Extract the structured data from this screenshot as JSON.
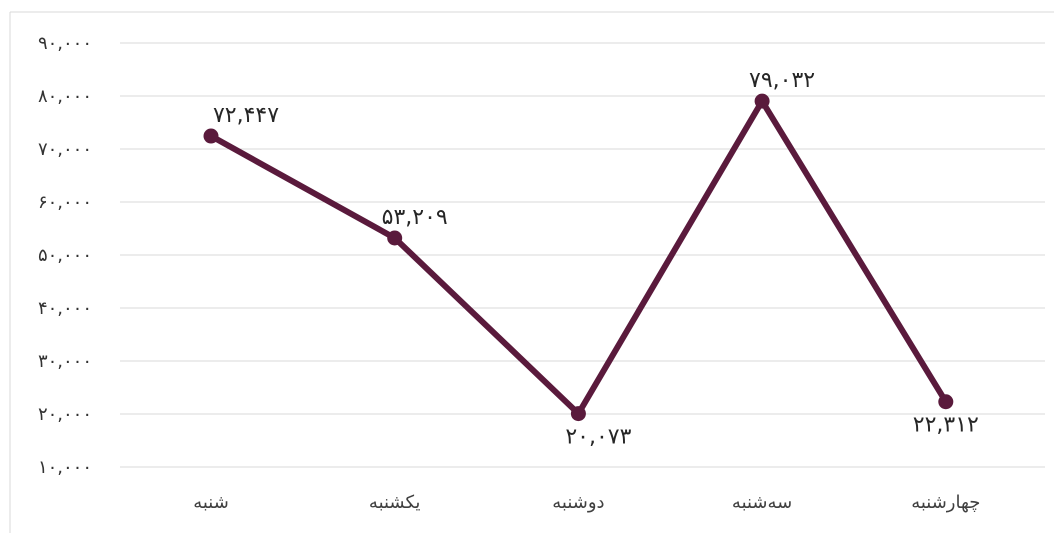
{
  "chart_data": {
    "type": "line",
    "title": "",
    "xlabel": "",
    "ylabel": "",
    "categories": [
      "شنبه",
      "یکشنبه",
      "دوشنبه",
      "سه‌شنبه",
      "چهارشنبه"
    ],
    "series": [
      {
        "values": [
          72447,
          53209,
          20073,
          79032,
          22312
        ],
        "data_labels": [
          "۷۲,۴۴۷",
          "۵۳,۲۰۹",
          "۲۰,۰۷۳",
          "۷۹,۰۳۲",
          "۲۲,۳۱۲"
        ],
        "color": "#5a1a3c"
      }
    ],
    "ylim": [
      10000,
      90000
    ],
    "y_ticks": [
      10000,
      20000,
      30000,
      40000,
      50000,
      60000,
      70000,
      80000,
      90000
    ],
    "y_tick_labels": [
      "۱۰,۰۰۰",
      "۲۰,۰۰۰",
      "۳۰,۰۰۰",
      "۴۰,۰۰۰",
      "۵۰,۰۰۰",
      "۶۰,۰۰۰",
      "۷۰,۰۰۰",
      "۸۰,۰۰۰",
      "۹۰,۰۰۰"
    ],
    "grid": true,
    "legend": "none",
    "colors": {
      "line": "#5a1a3c",
      "grid": "#d9d9d9",
      "text": "#333333"
    }
  }
}
